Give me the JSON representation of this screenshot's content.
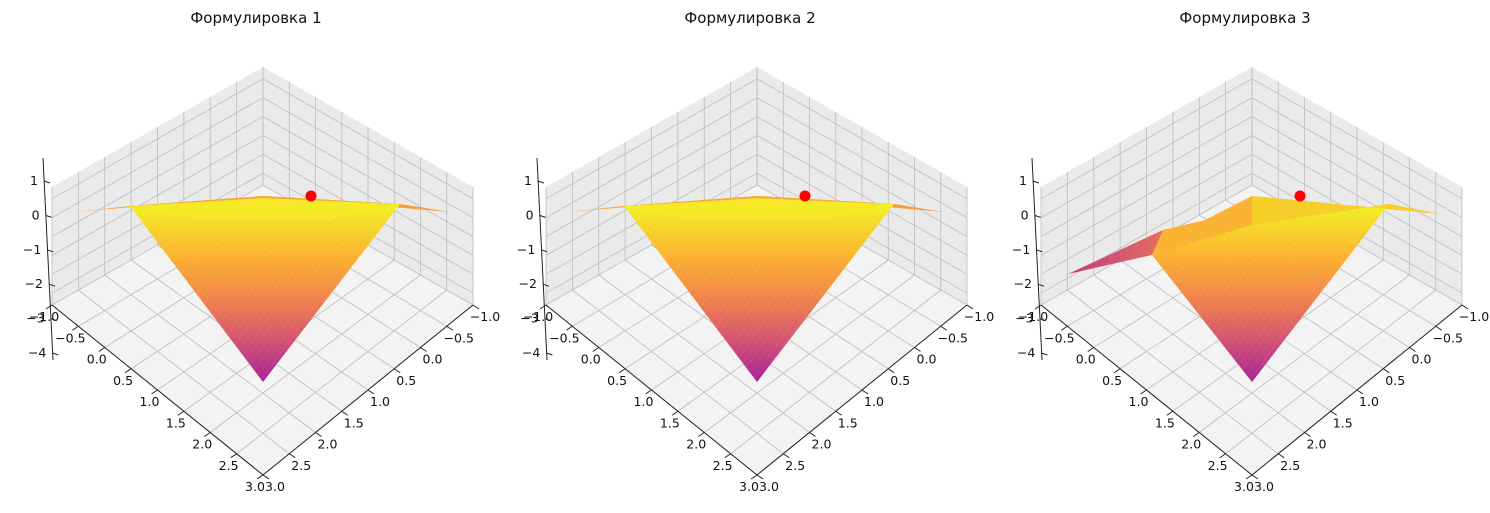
{
  "figure": {
    "subplots": [
      {
        "title": "Формулировка 1"
      },
      {
        "title": "Формулировка 2"
      },
      {
        "title": "Формулировка 3"
      }
    ]
  },
  "chart_data": [
    {
      "type": "surface3d",
      "title": "Формулировка 1",
      "xlabel": "",
      "ylabel": "",
      "zlabel": "",
      "x_ticks": [
        "−1.0",
        "−0.5",
        "0.0",
        "0.5",
        "1.0",
        "1.5",
        "2.0",
        "2.5",
        "3.0"
      ],
      "y_ticks": [
        "−1.0",
        "−0.5",
        "0.0",
        "0.5",
        "1.0",
        "1.5",
        "2.0",
        "2.5",
        "3.0"
      ],
      "z_ticks": [
        "1",
        "0",
        "−1",
        "−2",
        "−3",
        "−4"
      ],
      "xlim": [
        -1.0,
        3.0
      ],
      "ylim": [
        -1.0,
        3.0
      ],
      "zlim": [
        -4.5,
        1.5
      ],
      "surface": {
        "shape": "inverted-pyramid",
        "apex": {
          "x": 3.0,
          "y": 3.0,
          "z": -4.0
        },
        "rim_z": 0.0
      },
      "point": {
        "x": -1.0,
        "y": -1.0,
        "z": 0.2,
        "color": "#ff0000"
      },
      "colormap": "plasma",
      "grid": true
    },
    {
      "type": "surface3d",
      "title": "Формулировка 2",
      "xlabel": "",
      "ylabel": "",
      "zlabel": "",
      "x_ticks": [
        "−1.0",
        "−0.5",
        "0.0",
        "0.5",
        "1.0",
        "1.5",
        "2.0",
        "2.5",
        "3.0"
      ],
      "y_ticks": [
        "−1.0",
        "−0.5",
        "0.0",
        "0.5",
        "1.0",
        "1.5",
        "2.0",
        "2.5",
        "3.0"
      ],
      "z_ticks": [
        "1",
        "0",
        "−1",
        "−2",
        "−3",
        "−4"
      ],
      "xlim": [
        -1.0,
        3.0
      ],
      "ylim": [
        -1.0,
        3.0
      ],
      "zlim": [
        -4.5,
        1.5
      ],
      "surface": {
        "shape": "inverted-pyramid",
        "apex": {
          "x": 3.0,
          "y": 3.0,
          "z": -4.0
        },
        "rim_z": 0.0
      },
      "point": {
        "x": -1.0,
        "y": -1.0,
        "z": 0.2,
        "color": "#ff0000"
      },
      "colormap": "plasma",
      "grid": true
    },
    {
      "type": "surface3d",
      "title": "Формулировка 3",
      "xlabel": "",
      "ylabel": "",
      "zlabel": "",
      "x_ticks": [
        "−1.0",
        "−0.5",
        "0.0",
        "0.5",
        "1.0",
        "1.5",
        "2.0",
        "2.5",
        "3.0"
      ],
      "y_ticks": [
        "−1.0",
        "−0.5",
        "0.0",
        "0.5",
        "1.0",
        "1.5",
        "2.0",
        "2.5",
        "3.0"
      ],
      "z_ticks": [
        "1",
        "0",
        "−1",
        "−2",
        "−3",
        "−4"
      ],
      "xlim": [
        -1.0,
        3.0
      ],
      "ylim": [
        -1.0,
        3.0
      ],
      "zlim": [
        -4.5,
        1.5
      ],
      "surface": {
        "shape": "skewed-pyramid",
        "apex": {
          "x": 3.0,
          "y": 3.0,
          "z": -4.0
        },
        "left_corner_z": -2.0,
        "rim_z": 0.0
      },
      "point": {
        "x": -1.0,
        "y": -1.0,
        "z": 0.2,
        "color": "#ff0000"
      },
      "colormap": "plasma",
      "grid": true
    }
  ]
}
